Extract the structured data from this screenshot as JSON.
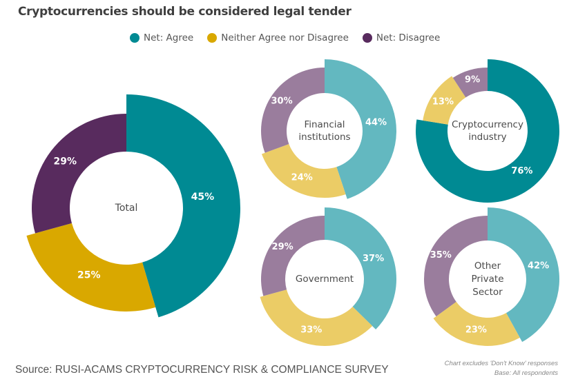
{
  "chart_data": {
    "type": "pie",
    "title": "Cryptocurrencies should be considered legal tender",
    "legend": [
      {
        "name": "Net: Agree",
        "color": "#008a93"
      },
      {
        "name": "Neither Agree nor Disagree",
        "color": "#d9a800"
      },
      {
        "name": "Net: Disagree",
        "color": "#582b5e"
      }
    ],
    "charts": [
      {
        "label": "Total",
        "labels_lines": [
          "Total"
        ],
        "values": [
          45,
          25,
          29
        ],
        "value_labels": [
          "45%",
          "25%",
          "29%"
        ],
        "colors": [
          "#008a93",
          "#d9a800",
          "#582b5e"
        ]
      },
      {
        "label": "Financial institutions",
        "labels_lines": [
          "Financial",
          "institutions"
        ],
        "values": [
          44,
          24,
          30
        ],
        "value_labels": [
          "44%",
          "24%",
          "30%"
        ],
        "colors": [
          "#63b8c0",
          "#ebcc66",
          "#9a7d9d"
        ]
      },
      {
        "label": "Cryptocurrency industry",
        "labels_lines": [
          "Cryptocurrency",
          "industry"
        ],
        "values": [
          76,
          13,
          9
        ],
        "value_labels": [
          "76%",
          "13%",
          "9%"
        ],
        "colors": [
          "#008a93",
          "#ebcc66",
          "#9a7d9d"
        ]
      },
      {
        "label": "Government",
        "labels_lines": [
          "Government"
        ],
        "values": [
          37,
          33,
          29
        ],
        "value_labels": [
          "37%",
          "33%",
          "29%"
        ],
        "colors": [
          "#63b8c0",
          "#ebcc66",
          "#9a7d9d"
        ]
      },
      {
        "label": "Other Private Sector",
        "labels_lines": [
          "Other",
          "Private",
          "Sector"
        ],
        "values": [
          42,
          23,
          35
        ],
        "value_labels": [
          "42%",
          "23%",
          "35%"
        ],
        "colors": [
          "#63b8c0",
          "#ebcc66",
          "#9a7d9d"
        ]
      }
    ]
  },
  "footer": {
    "source": "Source: RUSI-ACAMS CRYPTOCURRENCY RISK & COMPLIANCE SURVEY",
    "note1": "Chart excludes 'Don't Know' responses",
    "note2": "Base: All respondents"
  }
}
